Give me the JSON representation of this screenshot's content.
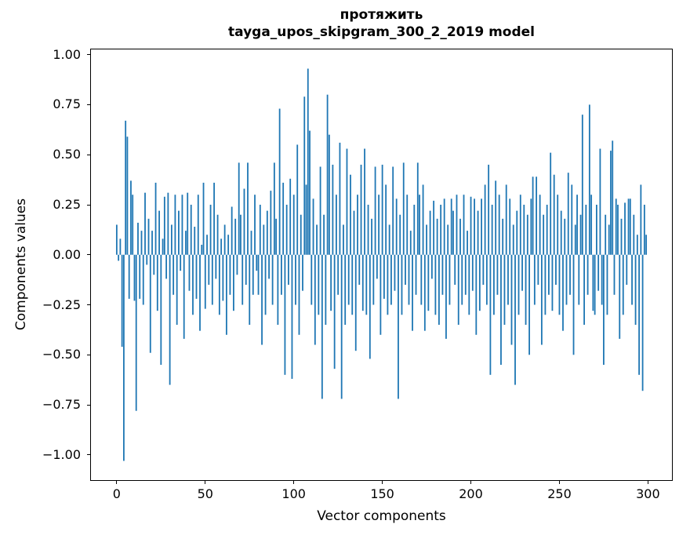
{
  "chart_data": {
    "type": "bar",
    "title_line1": "протяжить",
    "title_line2": "tayga_upos_skipgram_300_2_2019 model",
    "xlabel": "Vector components",
    "ylabel": "Components values",
    "bar_color": "#1f77b4",
    "grid": false,
    "xlim": [
      -15,
      314
    ],
    "ylim": [
      -1.13,
      1.03
    ],
    "xticks": [
      {
        "label": "0",
        "value": 0
      },
      {
        "label": "50",
        "value": 50
      },
      {
        "label": "100",
        "value": 100
      },
      {
        "label": "150",
        "value": 150
      },
      {
        "label": "200",
        "value": 200
      },
      {
        "label": "250",
        "value": 250
      },
      {
        "label": "300",
        "value": 300
      }
    ],
    "yticks": [
      {
        "label": "1.00",
        "value": 1.0
      },
      {
        "label": "0.75",
        "value": 0.75
      },
      {
        "label": "0.50",
        "value": 0.5
      },
      {
        "label": "0.25",
        "value": 0.25
      },
      {
        "label": "0.00",
        "value": 0.0
      },
      {
        "label": "−0.25",
        "value": -0.25
      },
      {
        "label": "−0.50",
        "value": -0.5
      },
      {
        "label": "−0.75",
        "value": -0.75
      },
      {
        "label": "−1.00",
        "value": -1.0
      }
    ],
    "values": [
      0.15,
      -0.03,
      0.08,
      -0.46,
      -1.03,
      0.67,
      0.59,
      -0.22,
      0.37,
      0.3,
      -0.23,
      -0.78,
      0.16,
      -0.22,
      0.12,
      -0.25,
      0.31,
      -0.05,
      0.18,
      -0.49,
      0.12,
      -0.1,
      0.36,
      -0.28,
      0.22,
      -0.55,
      0.08,
      0.29,
      -0.12,
      0.31,
      -0.65,
      0.15,
      -0.2,
      0.3,
      -0.35,
      0.22,
      -0.08,
      0.3,
      -0.42,
      0.12,
      0.31,
      -0.18,
      0.25,
      -0.3,
      0.14,
      -0.22,
      0.3,
      -0.38,
      0.05,
      0.36,
      -0.27,
      0.1,
      -0.15,
      0.25,
      -0.25,
      0.36,
      -0.12,
      0.2,
      -0.3,
      0.08,
      -0.23,
      0.15,
      -0.4,
      0.1,
      -0.2,
      0.24,
      -0.28,
      0.18,
      -0.1,
      0.46,
      0.2,
      -0.25,
      0.33,
      -0.15,
      0.46,
      -0.35,
      0.12,
      -0.2,
      0.3,
      -0.08,
      -0.2,
      0.25,
      -0.45,
      0.15,
      -0.3,
      0.22,
      -0.12,
      0.32,
      -0.25,
      0.46,
      0.18,
      -0.35,
      0.73,
      -0.2,
      0.36,
      -0.6,
      0.25,
      -0.15,
      0.38,
      -0.62,
      0.3,
      -0.25,
      0.55,
      -0.4,
      0.2,
      -0.18,
      0.79,
      0.35,
      0.93,
      0.62,
      -0.25,
      0.28,
      -0.45,
      0.15,
      -0.3,
      0.44,
      -0.72,
      0.2,
      -0.35,
      0.8,
      0.6,
      -0.28,
      0.45,
      -0.57,
      0.3,
      -0.2,
      0.56,
      -0.72,
      0.15,
      -0.35,
      0.53,
      -0.25,
      0.4,
      -0.3,
      0.22,
      -0.48,
      0.3,
      -0.15,
      0.45,
      -0.28,
      0.53,
      -0.3,
      0.25,
      -0.52,
      0.18,
      -0.25,
      0.44,
      -0.12,
      0.3,
      -0.4,
      0.45,
      -0.22,
      0.35,
      -0.3,
      0.15,
      -0.25,
      0.44,
      -0.18,
      0.28,
      -0.72,
      0.2,
      -0.3,
      0.46,
      -0.15,
      0.3,
      -0.25,
      0.12,
      -0.38,
      0.25,
      -0.2,
      0.46,
      0.3,
      -0.25,
      0.35,
      -0.38,
      0.15,
      -0.28,
      0.22,
      -0.12,
      0.27,
      -0.3,
      0.18,
      -0.35,
      0.25,
      -0.2,
      0.28,
      -0.42,
      0.15,
      -0.25,
      0.28,
      0.22,
      -0.15,
      0.3,
      -0.35,
      0.18,
      -0.25,
      0.3,
      -0.2,
      0.12,
      -0.3,
      0.29,
      -0.18,
      0.28,
      -0.4,
      0.22,
      -0.28,
      0.28,
      -0.15,
      0.35,
      -0.25,
      0.45,
      -0.6,
      0.25,
      -0.3,
      0.37,
      -0.2,
      0.3,
      -0.55,
      0.18,
      -0.35,
      0.35,
      -0.25,
      0.28,
      -0.45,
      0.15,
      -0.65,
      0.22,
      -0.3,
      0.3,
      -0.18,
      0.25,
      -0.35,
      0.2,
      -0.5,
      0.28,
      0.39,
      -0.25,
      0.39,
      -0.15,
      0.3,
      -0.45,
      0.2,
      -0.3,
      0.25,
      -0.2,
      0.51,
      -0.28,
      0.4,
      -0.15,
      0.3,
      -0.3,
      0.22,
      -0.38,
      0.18,
      -0.25,
      0.41,
      -0.2,
      0.35,
      -0.5,
      0.15,
      0.3,
      -0.25,
      0.2,
      0.7,
      -0.35,
      0.25,
      -0.2,
      0.75,
      0.3,
      -0.28,
      -0.3,
      0.25,
      -0.18,
      0.53,
      -0.25,
      -0.55,
      0.2,
      -0.3,
      0.15,
      0.52,
      0.57,
      -0.2,
      0.28,
      0.25,
      -0.42,
      0.18,
      -0.3,
      0.26,
      -0.15,
      0.28,
      0.28,
      -0.25,
      0.2,
      -0.35,
      0.1,
      -0.6,
      0.35,
      -0.68,
      0.25,
      0.1
    ]
  }
}
